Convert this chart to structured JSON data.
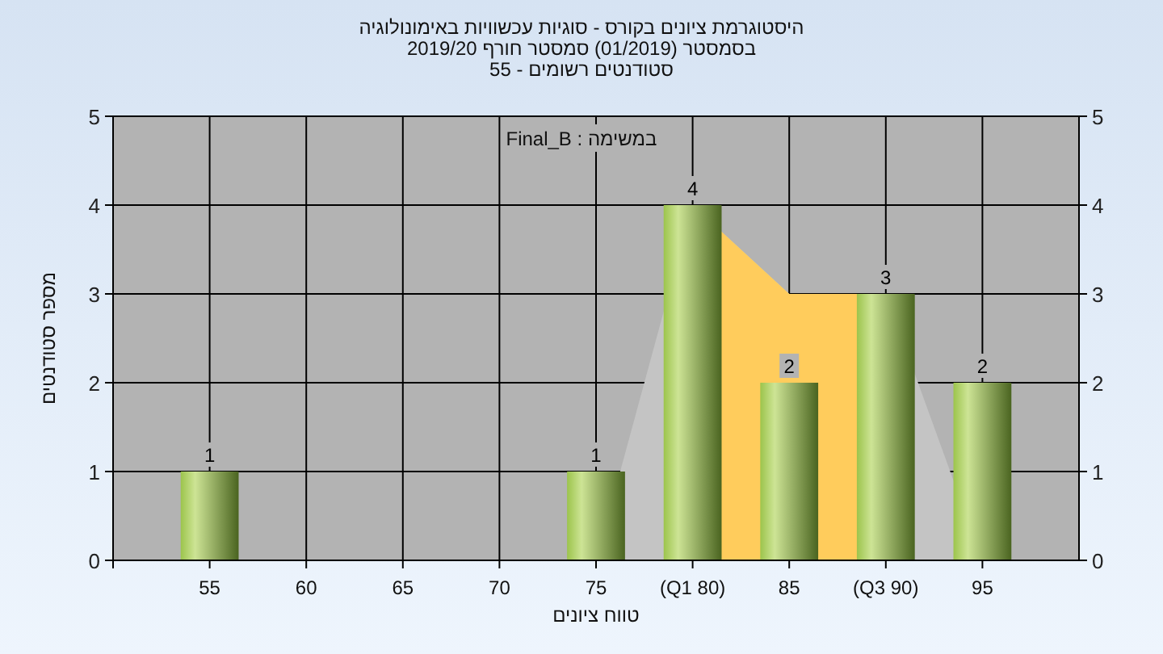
{
  "chart_data": {
    "type": "bar",
    "title": "היסטוגרמת ציונים בקורס - סוגיות עכשוויות באימונולוגיה",
    "subtitle": "בסמסטר  (01/2019)  סמסטר חורף 2019/20\nסטודנטים רשומים - 55",
    "xlabel": "טווח ציונים",
    "ylabel": "מספר סטודנטים",
    "annotations": [
      "במשימה : Final_B"
    ],
    "categories": [
      "55",
      "60",
      "65",
      "70",
      "75",
      "(Q1 80)",
      "85",
      "(Q3 90)",
      "95"
    ],
    "series": [
      {
        "type": "area",
        "color": "#c4c4c4",
        "values": [
          null,
          null,
          null,
          null,
          0,
          4,
          3,
          3,
          0
        ]
      },
      {
        "type": "area",
        "color": "#ffcc5c",
        "values": [
          null,
          null,
          null,
          null,
          null,
          4,
          3,
          3,
          null
        ]
      },
      {
        "type": "bar",
        "color": "#9cc44c",
        "values": [
          1,
          0,
          0,
          0,
          1,
          4,
          2,
          3,
          2
        ],
        "value_labels": [
          "1",
          null,
          null,
          null,
          "1",
          "4",
          "2",
          "3",
          "2"
        ]
      }
    ],
    "ylim": [
      0,
      5
    ],
    "yticks": [
      0,
      1,
      2,
      3,
      4,
      5
    ],
    "y2lim": [
      0,
      5
    ],
    "y2ticks": [
      0,
      1,
      2,
      3,
      4,
      5
    ],
    "grid": true
  }
}
